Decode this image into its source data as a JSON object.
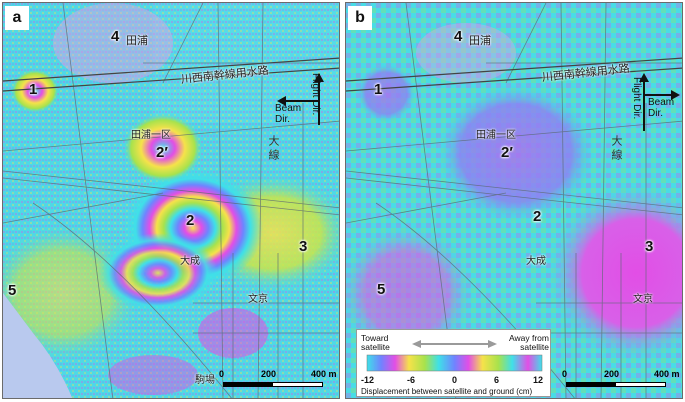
{
  "panels": [
    {
      "letter": "a",
      "sites": [
        "1",
        "2′",
        "2",
        "3",
        "4",
        "5"
      ],
      "places": {
        "tanoura": "田浦",
        "tanoura_ikku": "田浦一区",
        "taisei": "大成",
        "bunkyo": "文京",
        "komaba": "駒場",
        "canal": "川西南幹線用水路",
        "road": "大 線"
      },
      "scale": {
        "labels": [
          "0",
          "200",
          "400 m"
        ]
      },
      "arrows": {
        "flight": "Flight Dir.",
        "beam": "Beam Dir."
      }
    },
    {
      "letter": "b",
      "sites": [
        "1",
        "2′",
        "2",
        "3",
        "4",
        "5"
      ],
      "places": {
        "tanoura": "田浦",
        "tanoura_ikku": "田浦一区",
        "taisei": "大成",
        "bunkyo": "文京",
        "canal": "川西南幹線用水路",
        "road": "大 線"
      },
      "scale": {
        "labels": [
          "0",
          "200",
          "400 m"
        ]
      },
      "arrows": {
        "flight": "Flight Dir.",
        "beam": "Beam Dir."
      }
    }
  ],
  "legend": {
    "toward": "Toward satellite",
    "away": "Away from satellite",
    "ticks": [
      "-12",
      "-6",
      "0",
      "6",
      "12"
    ],
    "caption": "Displacement between satellite and ground (cm)"
  },
  "colors": {
    "cyan": "#3fe0e8",
    "green": "#a8e24c",
    "yellow": "#f6e24a",
    "magenta": "#e24ee6",
    "blue": "#6f84ff",
    "sea": "#b9c9ee"
  }
}
